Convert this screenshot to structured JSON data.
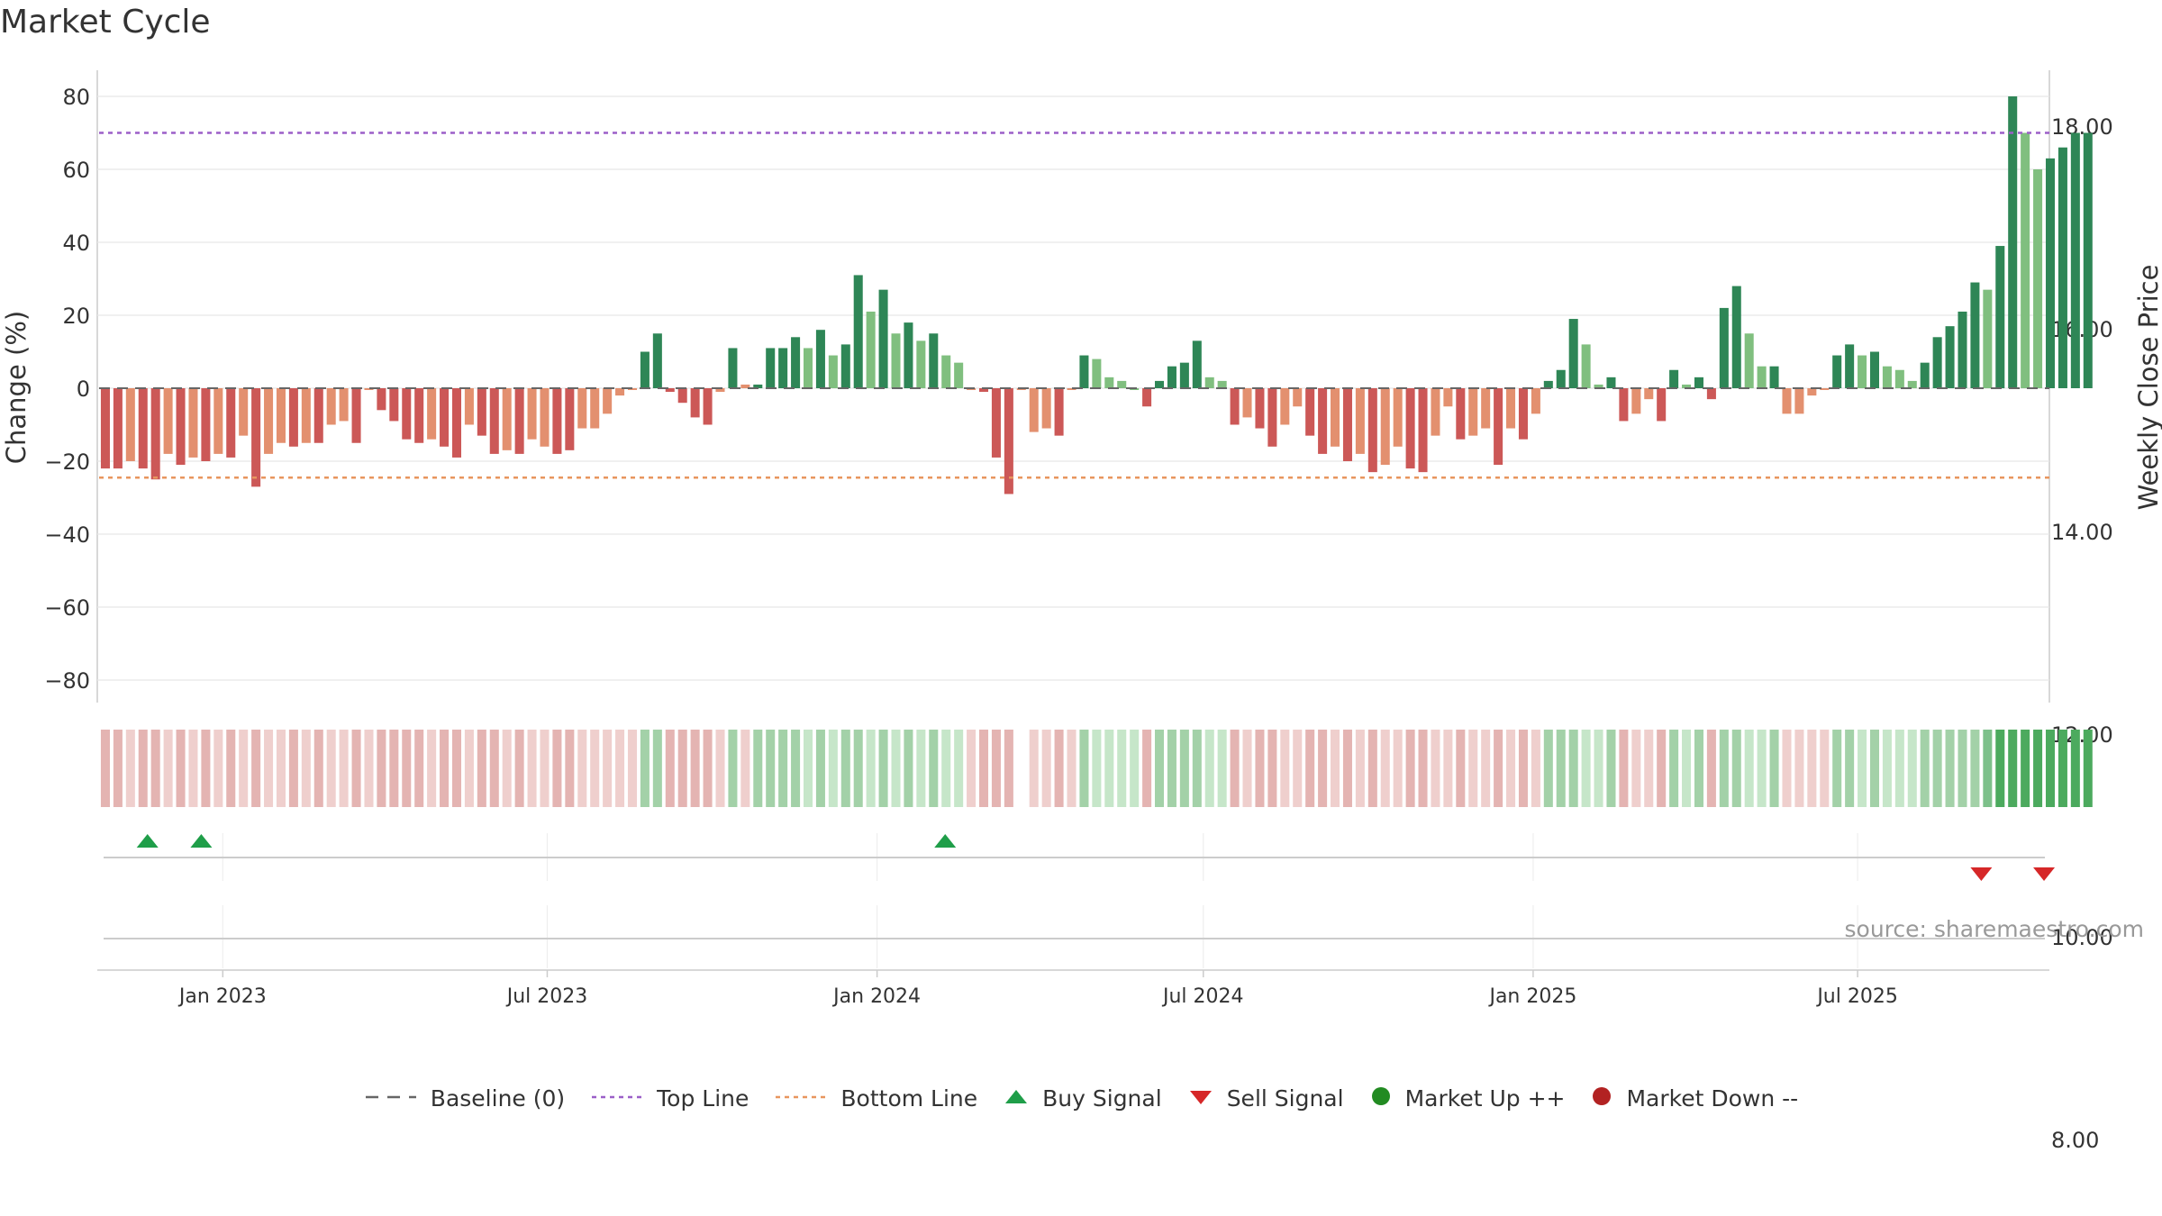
{
  "chart_data": {
    "type": "bar",
    "title": "Market Cycle",
    "ylabel": "Change (%)",
    "y2label": "Weekly Close Price",
    "ylim": [
      -86,
      86
    ],
    "yticks": [
      80,
      60,
      40,
      20,
      0,
      -20,
      -40,
      -60,
      -80
    ],
    "yticklabels": [
      "80",
      "60",
      "40",
      "20",
      "0",
      "−20",
      "−40",
      "−60",
      "−80"
    ],
    "y2ticks": [
      {
        "label": "18.00",
        "y": 18
      },
      {
        "label": "16.00",
        "y": 16
      },
      {
        "label": "14.00",
        "y": 14
      },
      {
        "label": "12.00",
        "y": 12
      },
      {
        "label": "10.00",
        "y": 10
      },
      {
        "label": "8.00",
        "y": 8
      }
    ],
    "top_line": 70,
    "bottom_line": -24.5,
    "xlim": [
      "2022-10-24",
      "2025-10-16"
    ],
    "xticks": [
      {
        "label": "Jan 2023",
        "date": "2023-01-01"
      },
      {
        "label": "Jul 2023",
        "date": "2023-07-01"
      },
      {
        "label": "Jan 2024",
        "date": "2024-01-01"
      },
      {
        "label": "Jul 2024",
        "date": "2024-07-01"
      },
      {
        "label": "Jan 2025",
        "date": "2025-01-01"
      },
      {
        "label": "Jul 2025",
        "date": "2025-07-01"
      }
    ],
    "series": [
      {
        "week_start": "2022-10-24",
        "values": [
          -22,
          -22,
          -20,
          -22,
          -25,
          -18,
          -21,
          -19,
          -20,
          -18,
          -19,
          -13,
          -27,
          -18,
          -15,
          -16,
          -15,
          -15,
          -10,
          -9,
          -15,
          0,
          -6,
          -9,
          -14,
          -15,
          -14,
          -16,
          -19,
          -10,
          -13,
          -18,
          -17,
          -18,
          -14,
          -16,
          -18,
          -17,
          -11,
          -11,
          -7,
          -2,
          0,
          10,
          15,
          -1,
          -4,
          -8,
          -10,
          -1,
          11,
          1,
          1,
          11,
          11,
          14,
          11,
          16,
          9,
          12,
          31,
          21,
          27,
          15,
          18,
          13,
          15,
          9,
          7,
          0,
          -1,
          -19,
          -29,
          0,
          -12,
          -11,
          -13,
          0,
          9,
          8,
          3,
          2,
          0,
          -5,
          2,
          6,
          7,
          13,
          3,
          2,
          -10,
          -8,
          -11,
          -16,
          -10,
          -5,
          -13,
          -18,
          -16,
          -20,
          -18,
          -23,
          -21,
          -16,
          -22,
          -23,
          -13,
          -5,
          -14,
          -13,
          -11,
          -21,
          -11,
          -14,
          -7,
          2,
          5,
          19,
          12,
          1,
          3,
          -9,
          -7,
          -3,
          -9,
          5,
          1,
          3,
          -3,
          22,
          28,
          15,
          6,
          6,
          -7,
          -7,
          -2,
          0,
          9,
          12,
          9,
          10,
          6,
          5,
          2,
          7,
          14,
          17,
          21,
          29,
          27,
          39,
          80,
          70,
          60,
          63,
          66,
          70,
          70
        ],
        "colors": [
          "m",
          "m",
          "l",
          "m",
          "m",
          "l",
          "m",
          "l",
          "m",
          "l",
          "m",
          "l",
          "m",
          "l",
          "l",
          "m",
          "l",
          "m",
          "l",
          "l",
          "m",
          "l",
          "m",
          "m",
          "m",
          "m",
          "l",
          "m",
          "m",
          "l",
          "m",
          "m",
          "l",
          "m",
          "l",
          "l",
          "m",
          "m",
          "l",
          "l",
          "l",
          "l",
          "l",
          "d",
          "d",
          "m",
          "m",
          "m",
          "m",
          "l",
          "d",
          "l",
          "d",
          "d",
          "d",
          "d",
          "g",
          "d",
          "g",
          "d",
          "d",
          "g",
          "d",
          "g",
          "d",
          "g",
          "d",
          "g",
          "g",
          "l",
          "m",
          "m",
          "m",
          "l",
          "l",
          "l",
          "m",
          "l",
          "d",
          "g",
          "g",
          "g",
          "g",
          "m",
          "d",
          "d",
          "d",
          "d",
          "g",
          "g",
          "m",
          "l",
          "m",
          "m",
          "l",
          "l",
          "m",
          "m",
          "l",
          "m",
          "l",
          "m",
          "l",
          "l",
          "m",
          "m",
          "l",
          "l",
          "m",
          "l",
          "l",
          "m",
          "l",
          "m",
          "l",
          "d",
          "d",
          "d",
          "g",
          "g",
          "d",
          "m",
          "l",
          "l",
          "m",
          "d",
          "g",
          "d",
          "m",
          "d",
          "d",
          "g",
          "g",
          "d",
          "l",
          "l",
          "l",
          "l",
          "d",
          "d",
          "g",
          "d",
          "g",
          "g",
          "g",
          "d",
          "d",
          "d",
          "d",
          "d",
          "g",
          "d",
          "d",
          "g",
          "g",
          "d",
          "d",
          "d",
          "d"
        ]
      }
    ],
    "heatmap_strip": [],
    "buy_signals": [
      "2022-11-20",
      "2022-12-20",
      "2024-02-08"
    ],
    "sell_signals": [
      "2025-09-08",
      "2025-10-13"
    ],
    "palette": {
      "d": "#2e8656",
      "g": "#80bf7f",
      "m": "#cc5857",
      "l": "#e3906f",
      "buy": "#1f9e49",
      "sell": "#d62728",
      "top": "#9b5fc8",
      "bottom": "#e8965e",
      "up": "#228b22",
      "down": "#b22222"
    },
    "legend": [
      {
        "key": "baseline",
        "label": "Baseline (0)"
      },
      {
        "key": "top",
        "label": "Top Line"
      },
      {
        "key": "bottom",
        "label": "Bottom Line"
      },
      {
        "key": "buy",
        "label": "Buy Signal"
      },
      {
        "key": "sell",
        "label": "Sell Signal"
      },
      {
        "key": "up",
        "label": "Market Up ++"
      },
      {
        "key": "down",
        "label": "Market Down --"
      }
    ],
    "legend_placement": "bottom-center",
    "grid": true
  },
  "source_note": "source: sharemaestro.com"
}
